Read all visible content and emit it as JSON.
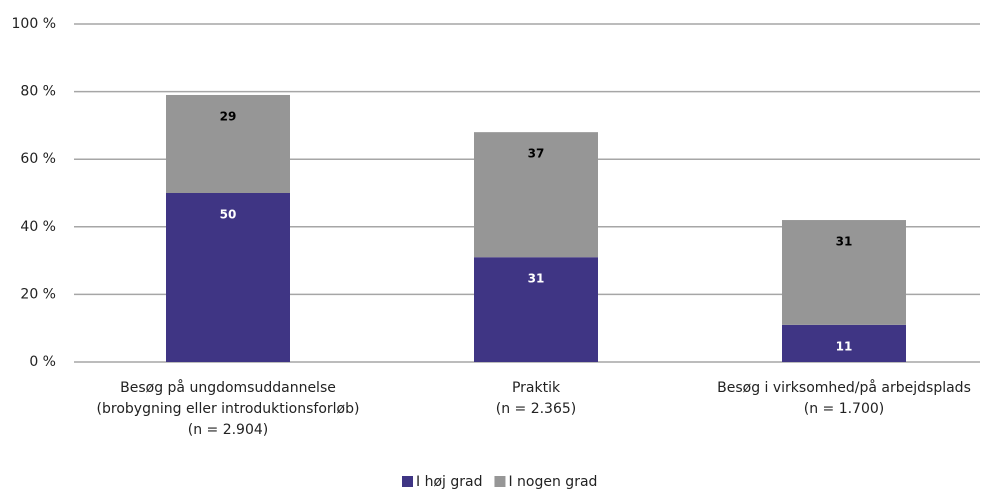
{
  "chart_data": {
    "type": "stacked_bar",
    "categories": [
      [
        "Besøg på ungdomsuddannelse",
        "(brobygning eller introduktionsforløb)",
        "(n = 2.904)"
      ],
      [
        "Praktik",
        "(n = 2.365)"
      ],
      [
        "Besøg i virksomhed/på arbejdsplads",
        "(n = 1.700)"
      ]
    ],
    "series": [
      {
        "name": "I høj grad",
        "color": "#3f3584",
        "label_color": "#ffffff",
        "values": [
          50,
          31,
          11
        ]
      },
      {
        "name": "I nogen grad",
        "color": "#969696",
        "label_color": "#000000",
        "values": [
          29,
          37,
          31
        ]
      }
    ],
    "ylim": [
      0,
      100
    ],
    "yticks": [
      {
        "value": 0,
        "label": "0 %"
      },
      {
        "value": 20,
        "label": "20 %"
      },
      {
        "value": 40,
        "label": "40 %"
      },
      {
        "value": 60,
        "label": "60 %"
      },
      {
        "value": 80,
        "label": "80 %"
      },
      {
        "value": 100,
        "label": "100 %"
      }
    ],
    "grid": true,
    "legend": "bottom"
  }
}
